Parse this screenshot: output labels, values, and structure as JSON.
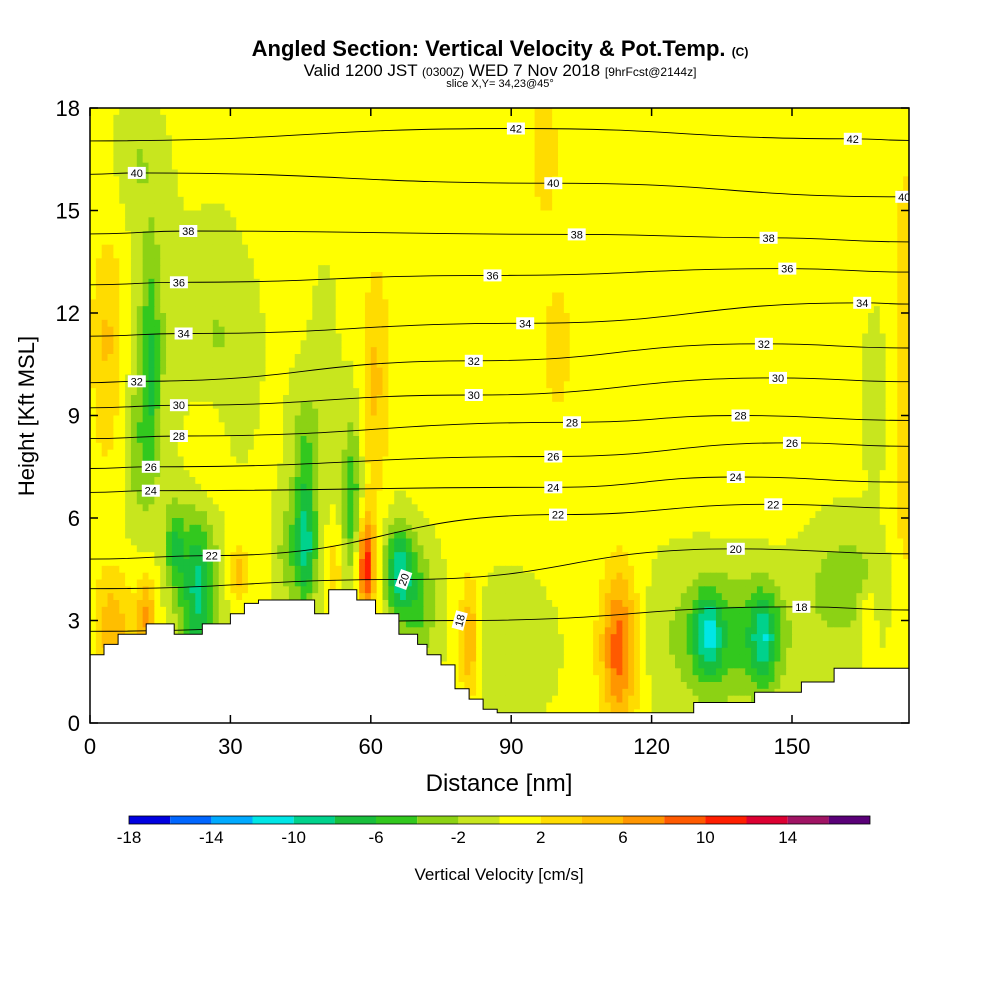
{
  "title": {
    "main": "Angled Section: Vertical Velocity & Pot.Temp.",
    "main_unit": "(C)",
    "valid_prefix": "Valid 1200 JST",
    "valid_utc": "(0300Z)",
    "valid_date": "WED 7 Nov 2018",
    "fcst": "[9hrFcst@2144z]",
    "slice": "slice X,Y= 34,23@45°"
  },
  "chart_data": {
    "type": "heatmap",
    "xlabel": "Distance [nm]",
    "ylabel": "Height [Kft MSL]",
    "xlim": [
      0,
      175
    ],
    "ylim": [
      0,
      18
    ],
    "xticks": [
      0,
      30,
      60,
      90,
      120,
      150
    ],
    "yticks": [
      0,
      3,
      6,
      9,
      12,
      15,
      18
    ],
    "colorbar": {
      "label": "Vertical Velocity [cm/s]",
      "tick_labels": [
        "-18",
        "-14",
        "-10",
        "-6",
        "-2",
        "2",
        "6",
        "10",
        "14"
      ],
      "tick_values": [
        -18,
        -14,
        -10,
        -6,
        -2,
        2,
        6,
        10,
        14
      ],
      "bins": [
        -18,
        -16,
        -14,
        -12,
        -10,
        -8,
        -6,
        -4,
        -2,
        0,
        2,
        4,
        6,
        8,
        10,
        12,
        14,
        16
      ],
      "colors": [
        "#0000e0",
        "#0066ff",
        "#00aaff",
        "#00e6e6",
        "#00d28c",
        "#19be3c",
        "#32c81e",
        "#8cd214",
        "#c8e61e",
        "#ffff00",
        "#ffdc00",
        "#ffbe00",
        "#ff9600",
        "#ff5a00",
        "#ff1e00",
        "#dc0032",
        "#a01464",
        "#5a0078"
      ]
    },
    "background_w": 0.3,
    "w_features": [
      {
        "x": 4,
        "y": 11.5,
        "rx": 4,
        "ry": 3,
        "w": 3.5
      },
      {
        "x": 3,
        "y": 8,
        "rx": 3,
        "ry": 4,
        "w": 1
      },
      {
        "x": 13,
        "y": 12,
        "rx": 5,
        "ry": 4,
        "w": -2
      },
      {
        "x": 13,
        "y": 10,
        "rx": 2,
        "ry": 3.5,
        "w": -5
      },
      {
        "x": 10,
        "y": 8,
        "rx": 2.5,
        "ry": 2.2,
        "w": -3
      },
      {
        "x": 10,
        "y": 16.5,
        "rx": 4,
        "ry": 1.5,
        "w": -2
      },
      {
        "x": 5,
        "y": 2.8,
        "rx": 4,
        "ry": 1.6,
        "w": 5
      },
      {
        "x": 12,
        "y": 3.2,
        "rx": 2,
        "ry": 1.2,
        "w": 6
      },
      {
        "x": 23,
        "y": 3.9,
        "rx": 4,
        "ry": 2.3,
        "w": -9
      },
      {
        "x": 18,
        "y": 5.2,
        "rx": 2,
        "ry": 1.2,
        "w": -6
      },
      {
        "x": 25,
        "y": 8,
        "rx": 4,
        "ry": 2,
        "w": 2.5
      },
      {
        "x": 27,
        "y": 11,
        "rx": 7,
        "ry": 3,
        "w": -2.5
      },
      {
        "x": 32,
        "y": 4.4,
        "rx": 2,
        "ry": 0.8,
        "w": 5
      },
      {
        "x": 46,
        "y": 5.2,
        "rx": 2.5,
        "ry": 1.8,
        "w": -9
      },
      {
        "x": 46,
        "y": 8,
        "rx": 3,
        "ry": 1.8,
        "w": -4
      },
      {
        "x": 42,
        "y": 5,
        "rx": 2.5,
        "ry": 1.5,
        "w": -3
      },
      {
        "x": 50,
        "y": 10,
        "rx": 3,
        "ry": 4,
        "w": -1
      },
      {
        "x": 52,
        "y": 4.5,
        "rx": 2,
        "ry": 1.1,
        "w": 3
      },
      {
        "x": 56,
        "y": 6.5,
        "rx": 2,
        "ry": 2.5,
        "w": -6
      },
      {
        "x": 59,
        "y": 4.6,
        "rx": 2,
        "ry": 1.4,
        "w": 11
      },
      {
        "x": 61,
        "y": 10,
        "rx": 3,
        "ry": 3.5,
        "w": 4
      },
      {
        "x": 66,
        "y": 4.5,
        "rx": 3,
        "ry": 1.3,
        "w": -9
      },
      {
        "x": 70,
        "y": 3.5,
        "rx": 4,
        "ry": 1.6,
        "w": -5
      },
      {
        "x": 44,
        "y": 16,
        "rx": 9,
        "ry": 2,
        "w": 1.5
      },
      {
        "x": 78,
        "y": 12,
        "rx": 10,
        "ry": 4,
        "w": 1.5
      },
      {
        "x": 81,
        "y": 2.4,
        "rx": 2,
        "ry": 1.8,
        "w": 6
      },
      {
        "x": 90,
        "y": 2.2,
        "rx": 8,
        "ry": 1.8,
        "w": -2
      },
      {
        "x": 97,
        "y": 17,
        "rx": 3,
        "ry": 2,
        "w": 3
      },
      {
        "x": 100,
        "y": 11,
        "rx": 6,
        "ry": 4,
        "w": 2
      },
      {
        "x": 113,
        "y": 2.2,
        "rx": 4,
        "ry": 2.3,
        "w": 9
      },
      {
        "x": 136,
        "y": 2.5,
        "rx": 14,
        "ry": 2,
        "w": -5
      },
      {
        "x": 132,
        "y": 2.6,
        "rx": 3,
        "ry": 1.2,
        "w": -7
      },
      {
        "x": 144,
        "y": 2.5,
        "rx": 3,
        "ry": 1.3,
        "w": -7
      },
      {
        "x": 162,
        "y": 4,
        "rx": 8,
        "ry": 1.6,
        "w": -4
      },
      {
        "x": 166,
        "y": 3.2,
        "rx": 2,
        "ry": 0.9,
        "w": 4
      },
      {
        "x": 168,
        "y": 9.5,
        "rx": 2.5,
        "ry": 2,
        "w": -2
      },
      {
        "x": 140,
        "y": 9,
        "rx": 10,
        "ry": 3,
        "w": 1.5
      },
      {
        "x": 174,
        "y": 10,
        "rx": 3,
        "ry": 8,
        "w": 3
      }
    ],
    "terrain": {
      "x": [
        0,
        3,
        3,
        6,
        6,
        12,
        12,
        18,
        18,
        24,
        24,
        30,
        30,
        33,
        33,
        36,
        36,
        48,
        48,
        51,
        51,
        57,
        57,
        61,
        61,
        66,
        66,
        70,
        70,
        72,
        72,
        75,
        75,
        78,
        78,
        81,
        81,
        84,
        84,
        87,
        87,
        90,
        90,
        96,
        96,
        114,
        114,
        129,
        129,
        142,
        142,
        152,
        152,
        159,
        159,
        175
      ],
      "y": [
        2.0,
        2.0,
        2.3,
        2.3,
        2.6,
        2.6,
        2.9,
        2.9,
        2.6,
        2.6,
        2.9,
        2.9,
        3.2,
        3.2,
        3.5,
        3.5,
        3.6,
        3.6,
        3.2,
        3.2,
        3.9,
        3.9,
        3.6,
        3.6,
        3.2,
        3.2,
        2.6,
        2.6,
        2.3,
        2.3,
        2.0,
        2.0,
        1.7,
        1.7,
        1.0,
        1.0,
        0.7,
        0.7,
        0.4,
        0.4,
        0.3,
        0.3,
        0.3,
        0.3,
        0.3,
        0.3,
        0.3,
        0.3,
        0.6,
        0.6,
        0.9,
        0.9,
        1.2,
        1.2,
        1.6,
        1.6
      ]
    },
    "theta_levels": [
      18,
      20,
      22,
      24,
      26,
      28,
      30,
      32,
      34,
      36,
      38,
      40,
      42
    ],
    "theta_labels": [
      {
        "text": "42",
        "x": 91,
        "y": 17.4
      },
      {
        "text": "42",
        "x": 163,
        "y": 17.1
      },
      {
        "text": "40",
        "x": 10,
        "y": 16.1
      },
      {
        "text": "40",
        "x": 99,
        "y": 15.8
      },
      {
        "text": "40",
        "x": 174,
        "y": 15.4
      },
      {
        "text": "38",
        "x": 21,
        "y": 14.4
      },
      {
        "text": "38",
        "x": 104,
        "y": 14.3
      },
      {
        "text": "38",
        "x": 145,
        "y": 14.2
      },
      {
        "text": "36",
        "x": 19,
        "y": 12.9
      },
      {
        "text": "36",
        "x": 86,
        "y": 13.1
      },
      {
        "text": "36",
        "x": 149,
        "y": 13.3
      },
      {
        "text": "34",
        "x": 20,
        "y": 11.4
      },
      {
        "text": "34",
        "x": 93,
        "y": 11.7
      },
      {
        "text": "34",
        "x": 165,
        "y": 12.3
      },
      {
        "text": "32",
        "x": 10,
        "y": 10.0
      },
      {
        "text": "32",
        "x": 82,
        "y": 10.6
      },
      {
        "text": "32",
        "x": 144,
        "y": 11.1
      },
      {
        "text": "30",
        "x": 19,
        "y": 9.3
      },
      {
        "text": "30",
        "x": 82,
        "y": 9.6
      },
      {
        "text": "30",
        "x": 147,
        "y": 10.1
      },
      {
        "text": "28",
        "x": 19,
        "y": 8.4
      },
      {
        "text": "28",
        "x": 103,
        "y": 8.8
      },
      {
        "text": "28",
        "x": 139,
        "y": 9.0
      },
      {
        "text": "26",
        "x": 13,
        "y": 7.5
      },
      {
        "text": "26",
        "x": 99,
        "y": 7.8
      },
      {
        "text": "26",
        "x": 150,
        "y": 8.2
      },
      {
        "text": "24",
        "x": 13,
        "y": 6.8
      },
      {
        "text": "24",
        "x": 99,
        "y": 6.9
      },
      {
        "text": "24",
        "x": 138,
        "y": 7.2
      },
      {
        "text": "22",
        "x": 26,
        "y": 4.9
      },
      {
        "text": "22",
        "x": 100,
        "y": 6.1
      },
      {
        "text": "22",
        "x": 146,
        "y": 6.4
      },
      {
        "text": "20",
        "x": 67,
        "y": 4.2,
        "rot": -70
      },
      {
        "text": "20",
        "x": 138,
        "y": 5.1
      },
      {
        "text": "18",
        "x": 79,
        "y": 3.0,
        "rot": -75
      },
      {
        "text": "18",
        "x": 152,
        "y": 3.4
      }
    ]
  }
}
